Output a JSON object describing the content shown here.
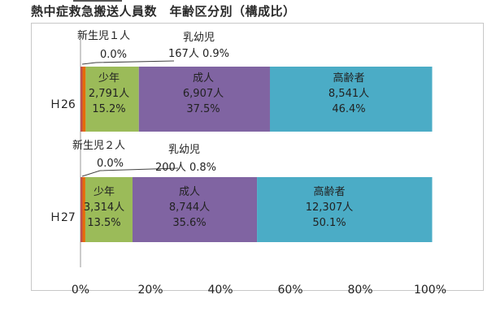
{
  "chart_data": {
    "type": "bar",
    "orientation": "horizontal",
    "stacked": "percent",
    "title": "熱中症救急搬送人員数　年齢区分別（構成比）",
    "categories": [
      "H26",
      "H27"
    ],
    "category_labels": [
      "Ｈ26",
      "Ｈ27"
    ],
    "xlim": [
      0,
      100
    ],
    "xticks": [
      "0%",
      "20%",
      "40%",
      "60%",
      "80%",
      "100%"
    ],
    "grid": false,
    "legend": "none",
    "series": [
      {
        "name": "新生児",
        "color": "#c0504d",
        "counts": [
          "1人",
          "2人"
        ],
        "values": [
          0.0,
          0.0
        ],
        "percent_labels": [
          "0.0%",
          "0.0%"
        ]
      },
      {
        "name": "乳幼児",
        "color": "#e46c0a",
        "counts": [
          "167人",
          "200人"
        ],
        "values": [
          0.9,
          0.8
        ],
        "percent_labels": [
          "0.9%",
          "0.8%"
        ]
      },
      {
        "name": "少年",
        "color": "#9bbb59",
        "counts": [
          "2,791人",
          "3,314人"
        ],
        "values": [
          15.2,
          13.5
        ],
        "percent_labels": [
          "15.2%",
          "13.5%"
        ]
      },
      {
        "name": "成人",
        "color": "#8064a2",
        "counts": [
          "6,907人",
          "8,744人"
        ],
        "values": [
          37.5,
          35.6
        ],
        "percent_labels": [
          "37.5%",
          "35.6%"
        ]
      },
      {
        "name": "高齢者",
        "color": "#4bacc6",
        "counts": [
          "8,541人",
          "12,307人"
        ],
        "values": [
          46.4,
          50.1
        ],
        "percent_labels": [
          "46.4%",
          "50.1%"
        ]
      }
    ],
    "segment_labels": [
      [
        {
          "name": "少年",
          "count": "2,791人",
          "pct": "15.2%"
        },
        {
          "name": "成人",
          "count": "6,907人",
          "pct": "37.5%"
        },
        {
          "name": "高齢者",
          "count": "8,541人",
          "pct": "46.4%"
        }
      ],
      [
        {
          "name": "少年",
          "count": "3,314人",
          "pct": "13.5%"
        },
        {
          "name": "成人",
          "count": "8,744人",
          "pct": "35.6%"
        },
        {
          "name": "高齢者",
          "count": "12,307人",
          "pct": "50.1%"
        }
      ]
    ],
    "callouts": [
      {
        "newborn_label": "新生児１人",
        "newborn_pct": "0.0%",
        "infant_label": "乳幼児",
        "infant_value": "167人 0.9%"
      },
      {
        "newborn_label": "新生児２人",
        "newborn_pct": "0.0%",
        "infant_label": "乳幼児",
        "infant_value": "200人 0.8%"
      }
    ]
  }
}
